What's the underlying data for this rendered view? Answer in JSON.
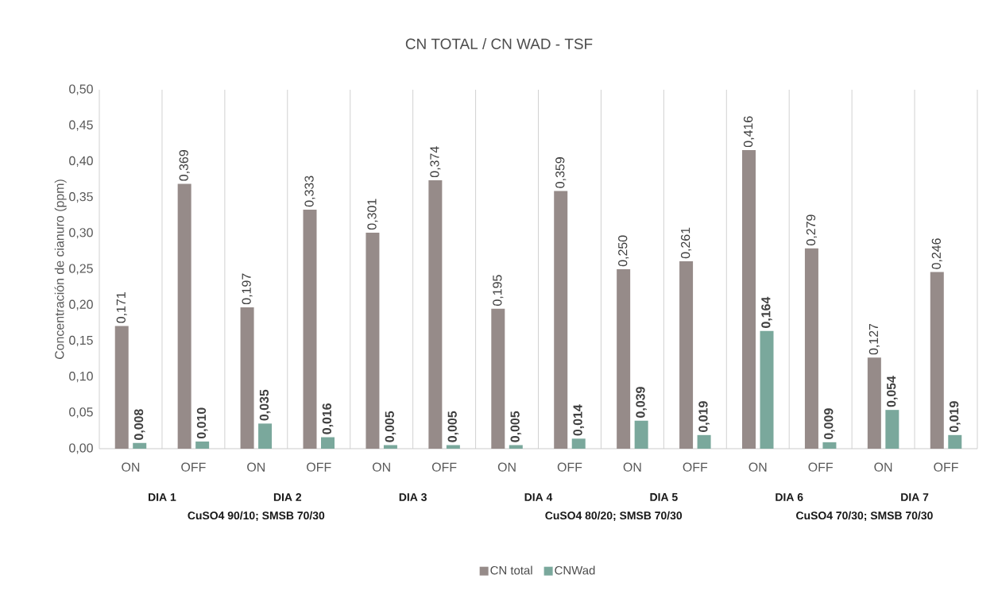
{
  "chart_data": {
    "type": "bar",
    "title": "CN TOTAL / CN WAD - TSF",
    "ylabel": "Concentración de cianuro (ppm)",
    "categories": [
      "ON",
      "OFF",
      "ON",
      "OFF",
      "ON",
      "OFF",
      "ON",
      "OFF",
      "ON",
      "OFF",
      "ON",
      "OFF",
      "ON",
      "OFF"
    ],
    "series": [
      {
        "name": "CN total",
        "color": "#968b89",
        "values": [
          0.171,
          0.369,
          0.197,
          0.333,
          0.301,
          0.374,
          0.195,
          0.359,
          0.25,
          0.261,
          0.416,
          0.279,
          0.127,
          0.246
        ],
        "value_labels": [
          "0,171",
          "0,369",
          "0,197",
          "0,333",
          "0,301",
          "0,374",
          "0,195",
          "0,359",
          "0,250",
          "0,261",
          "0,416",
          "0,279",
          "0,127",
          "0,246"
        ]
      },
      {
        "name": "CNWad",
        "color": "#7aa89c",
        "values": [
          0.008,
          0.01,
          0.035,
          0.016,
          0.005,
          0.005,
          0.005,
          0.014,
          0.039,
          0.019,
          0.164,
          0.009,
          0.054,
          0.019
        ],
        "value_labels": [
          "**0,008**",
          "**0,010**",
          "**0,035**",
          "**0,016**",
          "**0,005**",
          "**0,005**",
          "**0,005**",
          "**0,014**",
          "**0,039**",
          "**0,019**",
          "**0,164**",
          "**0,009**",
          "**0,054**",
          "**0,019**"
        ]
      }
    ],
    "ylim": [
      0,
      0.5
    ],
    "yticks": [
      {
        "value": 0,
        "label": "0,00"
      },
      {
        "value": 0.05,
        "label": "0,05"
      },
      {
        "value": 0.1,
        "label": "0,10"
      },
      {
        "value": 0.15,
        "label": "0,15"
      },
      {
        "value": 0.2,
        "label": "0,20"
      },
      {
        "value": 0.25,
        "label": "0,25"
      },
      {
        "value": 0.3,
        "label": "0,30"
      },
      {
        "value": 0.35,
        "label": "0,35"
      },
      {
        "value": 0.4,
        "label": "0,40"
      },
      {
        "value": 0.45,
        "label": "0,45"
      },
      {
        "value": 0.5,
        "label": "0,50"
      }
    ],
    "annotations": [
      "DIA 1",
      "DIA 2",
      "DIA 3",
      "DIA 4",
      "DIA 5",
      "DIA 6",
      "DIA 7",
      "CuSO4 90/10;  SMSB   70/30",
      "CuSO4 80/20; SMSB  70/30",
      "CuSO4 70/30;  SMSB 70/30"
    ],
    "grid": "x",
    "legend": "bottom"
  }
}
